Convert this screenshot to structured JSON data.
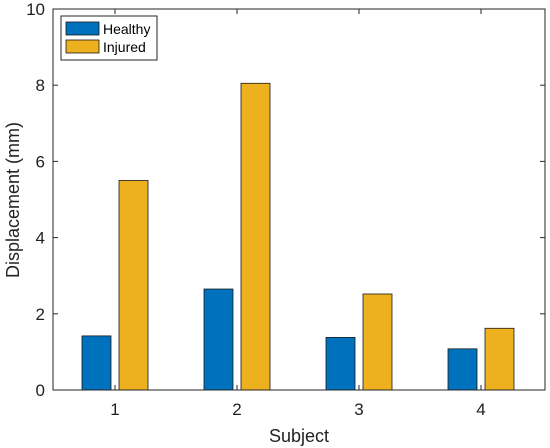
{
  "chart_data": {
    "type": "bar",
    "categories": [
      "1",
      "2",
      "3",
      "4"
    ],
    "series": [
      {
        "name": "Healthy",
        "values": [
          1.42,
          2.65,
          1.38,
          1.08
        ],
        "color": "#0072BD"
      },
      {
        "name": "Injured",
        "values": [
          5.5,
          8.05,
          2.52,
          1.62
        ],
        "color": "#EDB120"
      }
    ],
    "title": "",
    "xlabel": "Subject",
    "ylabel": "Displacement (mm)",
    "ylim": [
      0,
      10
    ],
    "yticks": [
      0,
      2,
      4,
      6,
      8,
      10
    ],
    "grid": false,
    "legend_position": "top-left"
  }
}
